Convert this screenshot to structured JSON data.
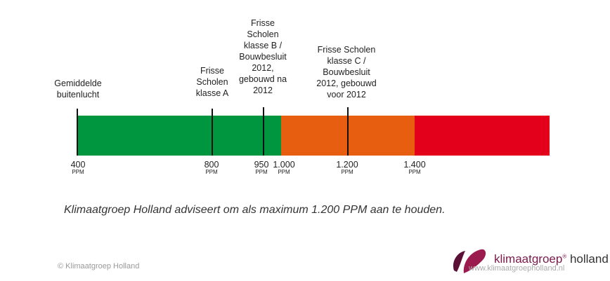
{
  "labels": {
    "avg": "Gemiddelde\nbuitenlucht",
    "classA": "Frisse\nScholen\nklasse A",
    "classB": "Frisse\nScholen\nklasse B /\nBouwbesluit\n2012,\ngebouwd na\n2012",
    "classC": "Frisse Scholen\nklasse C /\nBouwbesluit\n2012, gebouwd\nvoor 2012"
  },
  "ticks": {
    "t400": "400",
    "t800": "800",
    "t950": "950",
    "t1000": "1.000",
    "t1200": "1.200",
    "t1400": "1.400",
    "unit": "PPM"
  },
  "colors": {
    "green": "#009640",
    "orange": "#e85e10",
    "red": "#e3001b"
  },
  "advice": "Klimaatgroep Holland adviseert om als maximum 1.200 PPM aan te houden.",
  "footer": {
    "copyright": "© Klimaatgroep Holland",
    "brand_name": "klimaatgroep",
    "brand_reg": "®",
    "brand_suffix": " holland",
    "url": "www.klimaatgroepholland.nl"
  }
}
